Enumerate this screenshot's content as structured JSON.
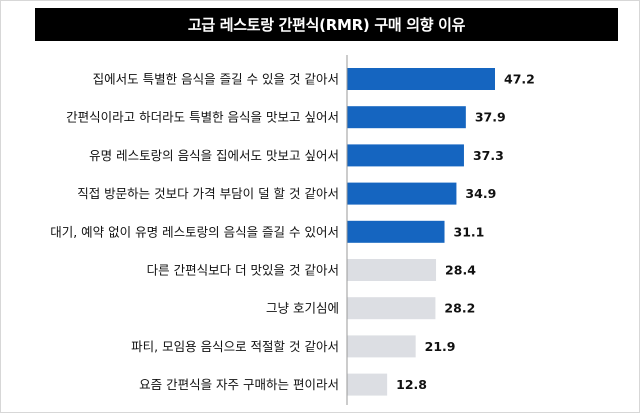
{
  "chart_data": {
    "type": "bar",
    "orientation": "horizontal",
    "title": "고급 레스토랑 간편식(RMR) 구매 의향 이유",
    "categories": [
      "집에서도 특별한 음식을 즐길 수 있을 것 같아서",
      "간편식이라고 하더라도 특별한 음식을 맛보고 싶어서",
      "유명 레스토랑의 음식을 집에서도 맛보고 싶어서",
      "직접 방문하는 것보다 가격 부담이 덜 할 것 같아서",
      "대기, 예약 없이 유명 레스토랑의 음식을 즐길 수 있어서",
      "다른 간편식보다 더 맛있을 것 같아서",
      "그냥 호기심에",
      "파티, 모임용 음식으로 적절할 것 같아서",
      "요즘 간편식을 자주 구매하는 편이라서"
    ],
    "values": [
      47.2,
      37.9,
      37.3,
      34.9,
      31.1,
      28.4,
      28.2,
      21.9,
      12.8
    ],
    "value_labels": [
      "47.2",
      "37.9",
      "37.3",
      "34.9",
      "31.1",
      "28.4",
      "28.2",
      "21.9",
      "12.8"
    ],
    "highlight_count": 5,
    "xlim": [
      0,
      50
    ],
    "xlabel": "",
    "ylabel": "",
    "colors": {
      "highlight": "#1565c0",
      "normal": "#dcdee3",
      "axis": "#9a9a9a"
    }
  }
}
